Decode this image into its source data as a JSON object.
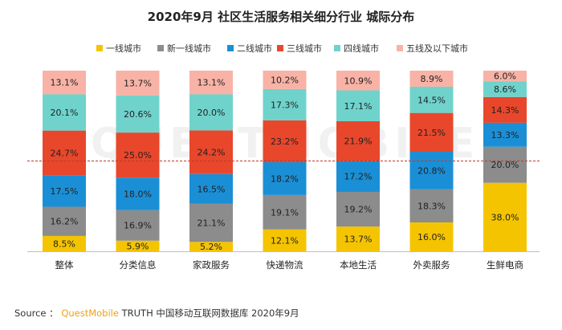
{
  "chart_data": {
    "type": "bar",
    "stacked": true,
    "percent": true,
    "title": "2020年9月 社区生活服务相关细分行业 城际分布",
    "categories": [
      "整体",
      "分类信息",
      "家政服务",
      "快递物流",
      "本地生活",
      "外卖服务",
      "生鲜电商"
    ],
    "series": [
      {
        "name": "一线城市",
        "color": "#f5c400",
        "values": [
          8.5,
          5.9,
          5.2,
          12.1,
          13.7,
          16.0,
          38.0
        ]
      },
      {
        "name": "新一线城市",
        "color": "#8c8c8c",
        "values": [
          16.2,
          16.9,
          21.1,
          19.1,
          19.2,
          18.3,
          20.0
        ]
      },
      {
        "name": "二线城市",
        "color": "#1a8fd6",
        "values": [
          17.5,
          18.0,
          16.5,
          18.2,
          17.2,
          20.8,
          13.3
        ]
      },
      {
        "name": "三线城市",
        "color": "#e8472c",
        "values": [
          24.7,
          25.0,
          24.2,
          23.2,
          21.9,
          21.5,
          14.3
        ]
      },
      {
        "name": "四线城市",
        "color": "#6fd3cc",
        "values": [
          20.1,
          20.6,
          20.0,
          17.3,
          17.1,
          14.5,
          8.6
        ]
      },
      {
        "name": "五线及以下城市",
        "color": "#f8b3a6",
        "values": [
          13.1,
          13.7,
          13.1,
          10.2,
          10.9,
          8.9,
          6.0
        ]
      }
    ],
    "ylim": [
      0,
      100
    ],
    "reference_line": {
      "value": 50,
      "style": "dashed",
      "color": "#c0392b"
    },
    "legend_position": "top",
    "grid": false
  },
  "watermark": "QUESTMOBILE",
  "source": {
    "prefix": "Source ：",
    "brand": "QuestMobile",
    "rest": " TRUTH 中国移动互联网数据库 2020年9月"
  }
}
